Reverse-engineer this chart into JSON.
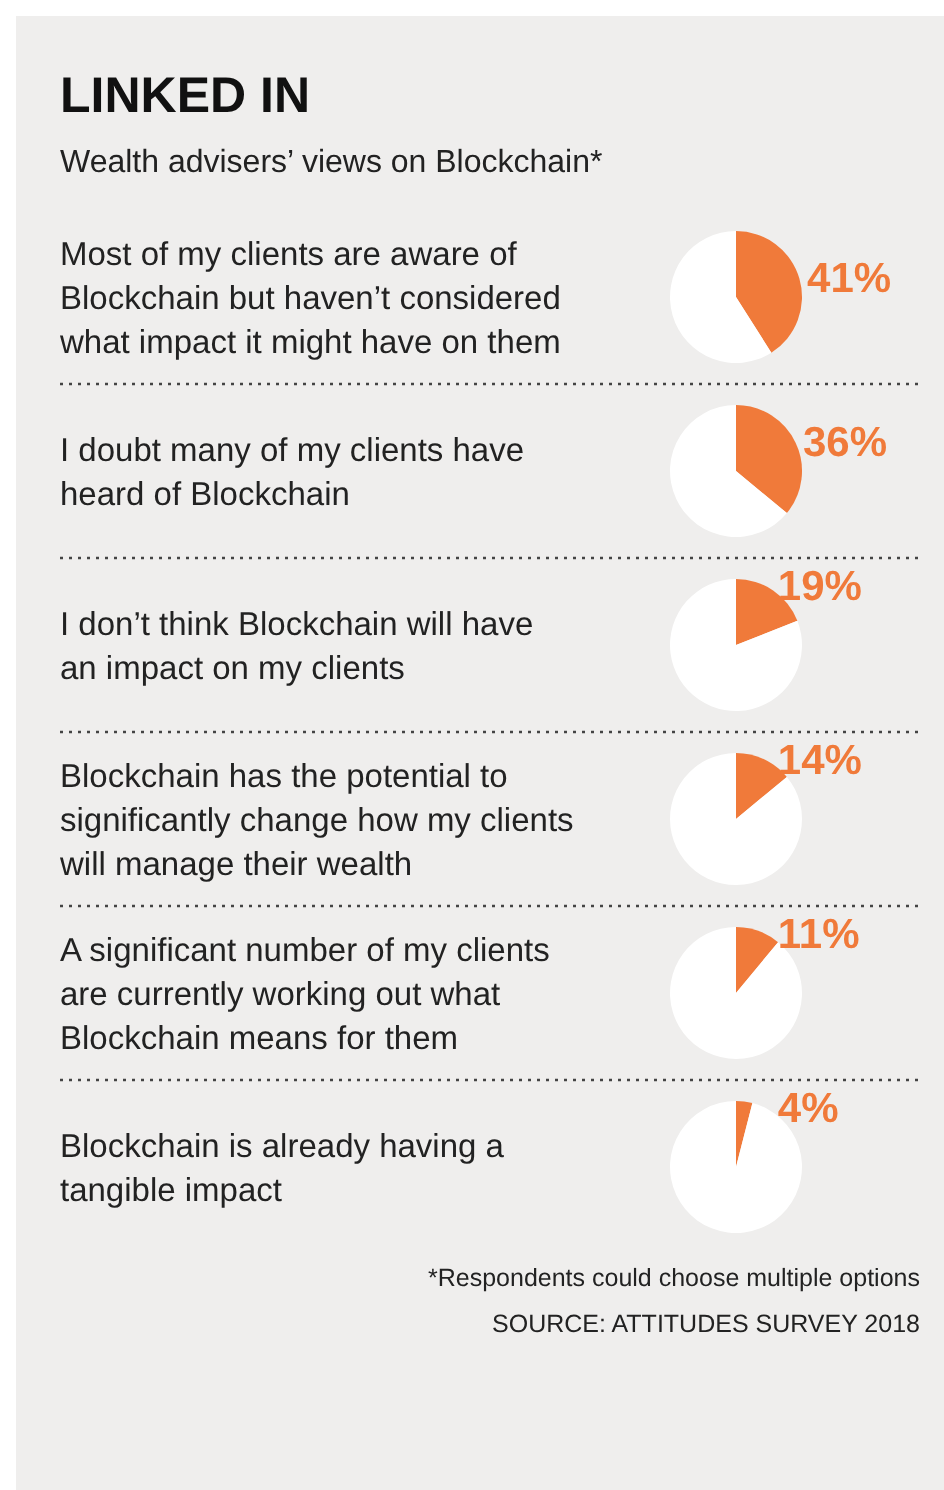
{
  "chart_data": [
    {
      "type": "other",
      "title": "LINKED IN",
      "subtitle": "Wealth advisers’ views on Blockchain*"
    },
    {
      "type": "pie",
      "title": "Most of my clients are aware of Blockchain but haven’t considered what impact it might have on them",
      "categories": [
        null,
        null
      ],
      "values": [
        41,
        59
      ],
      "colors": [
        "#f07a3a",
        "#ffffff"
      ],
      "value_labels": [
        "41%",
        null
      ]
    },
    {
      "type": "pie",
      "title": "I doubt many of my clients have heard of Blockchain",
      "categories": [
        null,
        null
      ],
      "values": [
        36,
        64
      ],
      "colors": [
        "#f07a3a",
        "#ffffff"
      ],
      "value_labels": [
        "36%",
        null
      ]
    },
    {
      "type": "pie",
      "title": "I don’t think Blockchain will have an impact on my clients",
      "categories": [
        null,
        null
      ],
      "values": [
        19,
        81
      ],
      "colors": [
        "#f07a3a",
        "#ffffff"
      ],
      "value_labels": [
        "19%",
        null
      ]
    },
    {
      "type": "pie",
      "title": "Blockchain has the potential to significantly change how my clients will manage their wealth",
      "categories": [
        null,
        null
      ],
      "values": [
        14,
        86
      ],
      "colors": [
        "#f07a3a",
        "#ffffff"
      ],
      "value_labels": [
        "14%",
        null
      ]
    },
    {
      "type": "pie",
      "title": "A significant number of my clients are currently working out what Blockchain means for them",
      "categories": [
        null,
        null
      ],
      "values": [
        11,
        89
      ],
      "colors": [
        "#f07a3a",
        "#ffffff"
      ],
      "value_labels": [
        "11%",
        null
      ]
    },
    {
      "type": "pie",
      "title": "Blockchain is already having a tangible impact",
      "categories": [
        null,
        null
      ],
      "values": [
        4,
        96
      ],
      "colors": [
        "#f07a3a",
        "#ffffff"
      ],
      "value_labels": [
        "4%",
        null
      ]
    },
    {
      "type": "other",
      "annotations": [
        "*Respondents could choose multiple options",
        "SOURCE: ATTITUDES SURVEY 2018"
      ]
    }
  ]
}
